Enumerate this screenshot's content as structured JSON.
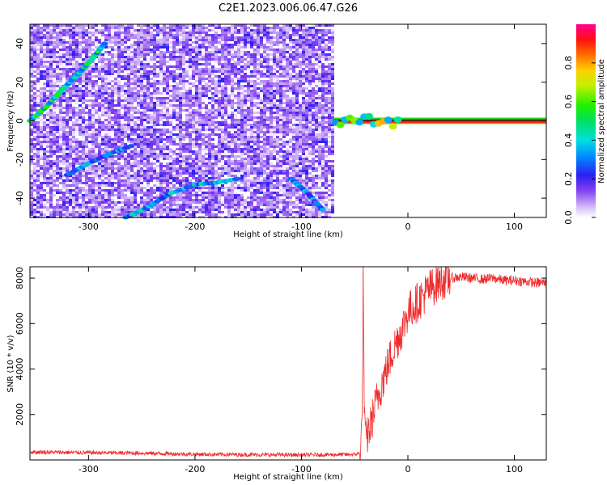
{
  "title": "C2E1.2023.006.06.47.G26",
  "colors": {
    "snr_line": "#ee2a2a",
    "axes": "#000000",
    "background": "#ffffff"
  },
  "chart_data": [
    {
      "type": "heatmap",
      "xlabel": "Height of straight line (km)",
      "ylabel": "Frequency (Hz)",
      "xlim": [
        -355,
        130
      ],
      "ylim": [
        -50,
        50
      ],
      "x_ticks": [
        -300,
        -200,
        -100,
        0,
        100
      ],
      "x_tick_labels": [
        "-300",
        "-200",
        "-100",
        "0",
        "100"
      ],
      "y_ticks": [
        -40,
        -20,
        0,
        20,
        40
      ],
      "y_tick_labels": [
        "-40",
        "-20",
        "0",
        "20",
        "40"
      ],
      "noise_extent_x": [
        -355,
        -70
      ],
      "carrier": {
        "frequency_hz": 0,
        "x_range": [
          -70,
          130
        ],
        "amplitude": 1.0
      },
      "tracks": [
        {
          "x": [
            -355,
            -340,
            -325,
            -310,
            -295,
            -285
          ],
          "y": [
            0,
            7,
            16,
            24,
            33,
            40
          ],
          "amplitude": 0.45
        },
        {
          "x": [
            -265,
            -245,
            -225,
            -200,
            -180,
            -160
          ],
          "y": [
            -50,
            -45,
            -38,
            -33,
            -32,
            -30
          ],
          "amplitude": 0.35
        },
        {
          "x": [
            -320,
            -300,
            -280,
            -260
          ],
          "y": [
            -28,
            -22,
            -17,
            -13
          ],
          "amplitude": 0.3
        },
        {
          "x": [
            -110,
            -95,
            -80
          ],
          "y": [
            -30,
            -37,
            -46
          ],
          "amplitude": 0.3
        }
      ],
      "colorbar": {
        "label": "Normalized spectral amplitude",
        "range": [
          0,
          1
        ],
        "ticks": [
          0.0,
          0.2,
          0.4,
          0.6,
          0.8
        ],
        "tick_labels": [
          "0.0",
          "0.2",
          "0.4",
          "0.6",
          "0.8"
        ]
      }
    },
    {
      "type": "line",
      "xlabel": "Height of straight line (km)",
      "ylabel": "SNR (10 * v/v)",
      "xlim": [
        -355,
        130
      ],
      "ylim": [
        0,
        8500
      ],
      "x_ticks": [
        -300,
        -200,
        -100,
        0,
        100
      ],
      "x_tick_labels": [
        "-300",
        "-200",
        "-100",
        "0",
        "100"
      ],
      "y_ticks": [
        2000,
        4000,
        6000,
        8000
      ],
      "y_tick_labels": [
        "2000",
        "4000",
        "6000",
        "8000"
      ],
      "series": [
        {
          "x": [
            -355,
            -300,
            -250,
            -200,
            -150,
            -100,
            -50,
            -45,
            -43,
            -42,
            -41,
            -40,
            -35,
            -30,
            -25,
            -20,
            -15,
            -10,
            -5,
            0,
            10,
            20,
            30,
            40,
            50,
            60,
            70,
            80,
            90,
            100,
            110,
            120,
            130
          ],
          "y": [
            350,
            320,
            300,
            250,
            230,
            220,
            240,
            300,
            1500,
            8200,
            2500,
            800,
            1500,
            2500,
            3300,
            4000,
            4700,
            5300,
            5800,
            6500,
            7000,
            7500,
            7900,
            8000,
            8050,
            8000,
            7950,
            8000,
            7900,
            7900,
            7850,
            7800,
            7800
          ]
        }
      ]
    }
  ]
}
